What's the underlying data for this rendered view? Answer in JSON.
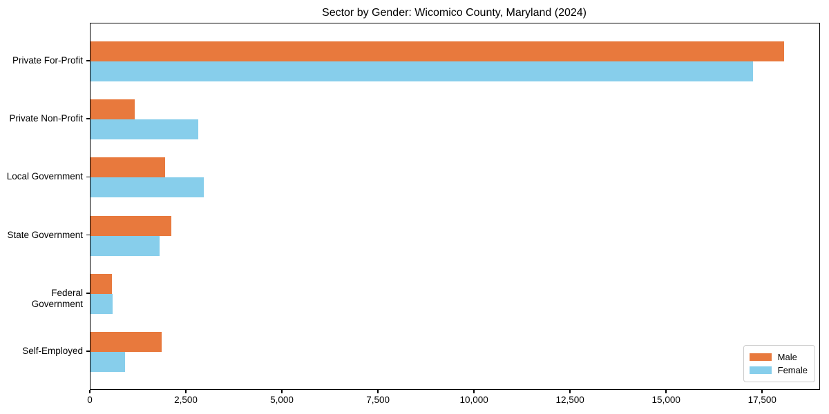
{
  "title": "Sector by Gender: Wicomico County, Maryland (2024)",
  "chart_data": {
    "type": "bar",
    "orientation": "horizontal",
    "title": "Sector by Gender: Wicomico County, Maryland (2024)",
    "categories": [
      "Private For-Profit",
      "Private Non-Profit",
      "Local Government",
      "State Government",
      "Federal Government",
      "Self-Employed"
    ],
    "series": [
      {
        "name": "Male",
        "color": "#e8793d",
        "values": [
          18050,
          1150,
          1950,
          2100,
          560,
          1850
        ]
      },
      {
        "name": "Female",
        "color": "#87ceeb",
        "values": [
          17250,
          2800,
          2950,
          1800,
          580,
          900
        ]
      }
    ],
    "xlabel": "",
    "ylabel": "",
    "xlim": [
      0,
      18970
    ],
    "xticks": [
      0,
      2500,
      5000,
      7500,
      10000,
      12500,
      15000,
      17500
    ],
    "xtick_labels": [
      "0",
      "2,500",
      "5,000",
      "7,500",
      "10,000",
      "12,500",
      "15,000",
      "17,500"
    ],
    "grid": false,
    "legend_position": "lower-right",
    "plot_border_color": "#000000",
    "background_color": "#ffffff"
  }
}
